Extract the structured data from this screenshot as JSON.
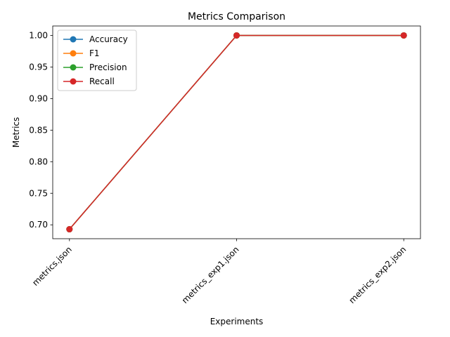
{
  "chart_data": {
    "type": "line",
    "title": "Metrics Comparison",
    "xlabel": "Experiments",
    "ylabel": "Metrics",
    "categories": [
      "metrics.json",
      "metrics_exp1.json",
      "metrics_exp2.json"
    ],
    "ylim": [
      0.678,
      1.015
    ],
    "yticks": [
      0.7,
      0.75,
      0.8,
      0.85,
      0.9,
      0.95,
      1.0
    ],
    "ytick_labels": [
      "0.70",
      "0.75",
      "0.80",
      "0.85",
      "0.90",
      "0.95",
      "1.00"
    ],
    "grid": false,
    "legend_position": "top-left",
    "series": [
      {
        "name": "Accuracy",
        "color": "#1f77b4",
        "values": [
          0.693,
          1.0,
          1.0
        ]
      },
      {
        "name": "F1",
        "color": "#ff7f0e",
        "values": [
          0.693,
          1.0,
          1.0
        ]
      },
      {
        "name": "Precision",
        "color": "#2ca02c",
        "values": [
          0.693,
          1.0,
          1.0
        ]
      },
      {
        "name": "Recall",
        "color": "#d62728",
        "values": [
          0.693,
          1.0,
          1.0
        ]
      }
    ]
  }
}
